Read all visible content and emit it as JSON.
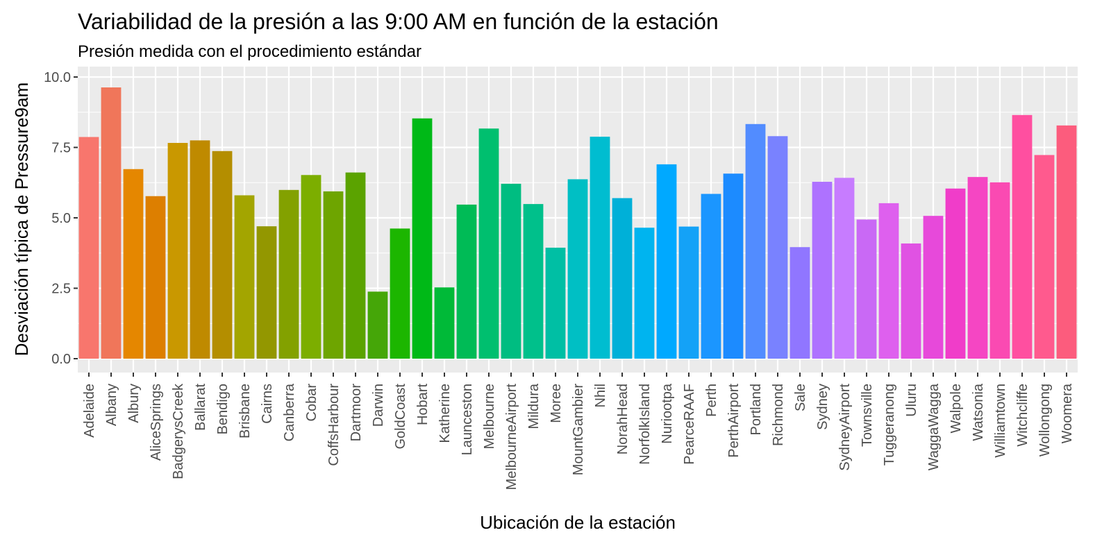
{
  "chart_data": {
    "type": "bar",
    "title": "Variabilidad de la presión a las 9:00 AM en función de la estación",
    "subtitle": "Presión medida con el procedimiento estándar",
    "xlabel": "Ubicación de la estación",
    "ylabel": "Desviación típica  de Pressure9am",
    "ylim": [
      0,
      10.2
    ],
    "yticks": [
      0,
      2.5,
      5,
      7.5,
      10
    ],
    "ytick_labels": [
      "0.0",
      "2.5",
      "5.0",
      "7.5",
      "10.0"
    ],
    "grid": true,
    "categories": [
      "Adelaide",
      "Albany",
      "Albury",
      "AliceSprings",
      "BadgerysCreek",
      "Ballarat",
      "Bendigo",
      "Brisbane",
      "Cairns",
      "Canberra",
      "Cobar",
      "CoffsHarbour",
      "Dartmoor",
      "Darwin",
      "GoldCoast",
      "Hobart",
      "Katherine",
      "Launceston",
      "Melbourne",
      "MelbourneAirport",
      "Mildura",
      "Moree",
      "MountGambier",
      "Nhil",
      "NorahHead",
      "NorfolkIsland",
      "Nuriootpa",
      "PearceRAAF",
      "Perth",
      "PerthAirport",
      "Portland",
      "Richmond",
      "Sale",
      "Sydney",
      "SydneyAirport",
      "Townsville",
      "Tuggeranong",
      "Uluru",
      "WaggaWagga",
      "Walpole",
      "Watsonia",
      "Williamtown",
      "Witchcliffe",
      "Wollongong",
      "Woomera"
    ],
    "values": [
      7.87,
      9.63,
      6.73,
      5.77,
      7.66,
      7.75,
      7.37,
      5.8,
      4.7,
      5.99,
      6.52,
      5.94,
      6.61,
      2.38,
      4.62,
      8.53,
      2.53,
      5.47,
      8.17,
      6.21,
      5.49,
      3.94,
      6.37,
      7.88,
      5.7,
      4.65,
      6.9,
      4.69,
      5.85,
      6.57,
      8.33,
      7.9,
      3.96,
      6.28,
      6.42,
      4.94,
      5.52,
      4.09,
      5.07,
      6.04,
      6.45,
      6.26,
      8.65,
      7.23,
      8.28
    ],
    "colors": [
      "#F8766D",
      "#F0765A",
      "#E58700",
      "#DD7F00",
      "#C99800",
      "#BF8A00",
      "#B48E00",
      "#A3A500",
      "#939700",
      "#83A100",
      "#7CAE00",
      "#6EA500",
      "#5BA300",
      "#45A608",
      "#1CB600",
      "#00B917",
      "#00BA38",
      "#00BB56",
      "#00BF6F",
      "#00BD81",
      "#00C08B",
      "#00BFA4",
      "#00BFC4",
      "#00BDD0",
      "#00B0D8",
      "#00B4EF",
      "#00A9FF",
      "#14A2F7",
      "#1B96FF",
      "#1C8BFF",
      "#528CFF",
      "#7982FF",
      "#9076FF",
      "#AE72FF",
      "#C77CFF",
      "#C969F5",
      "#DE60EE",
      "#E052E3",
      "#E749DA",
      "#F03DC9",
      "#F546C3",
      "#FA4AB2",
      "#FF4FA0",
      "#FF5A8E",
      "#FC5C7D"
    ]
  }
}
